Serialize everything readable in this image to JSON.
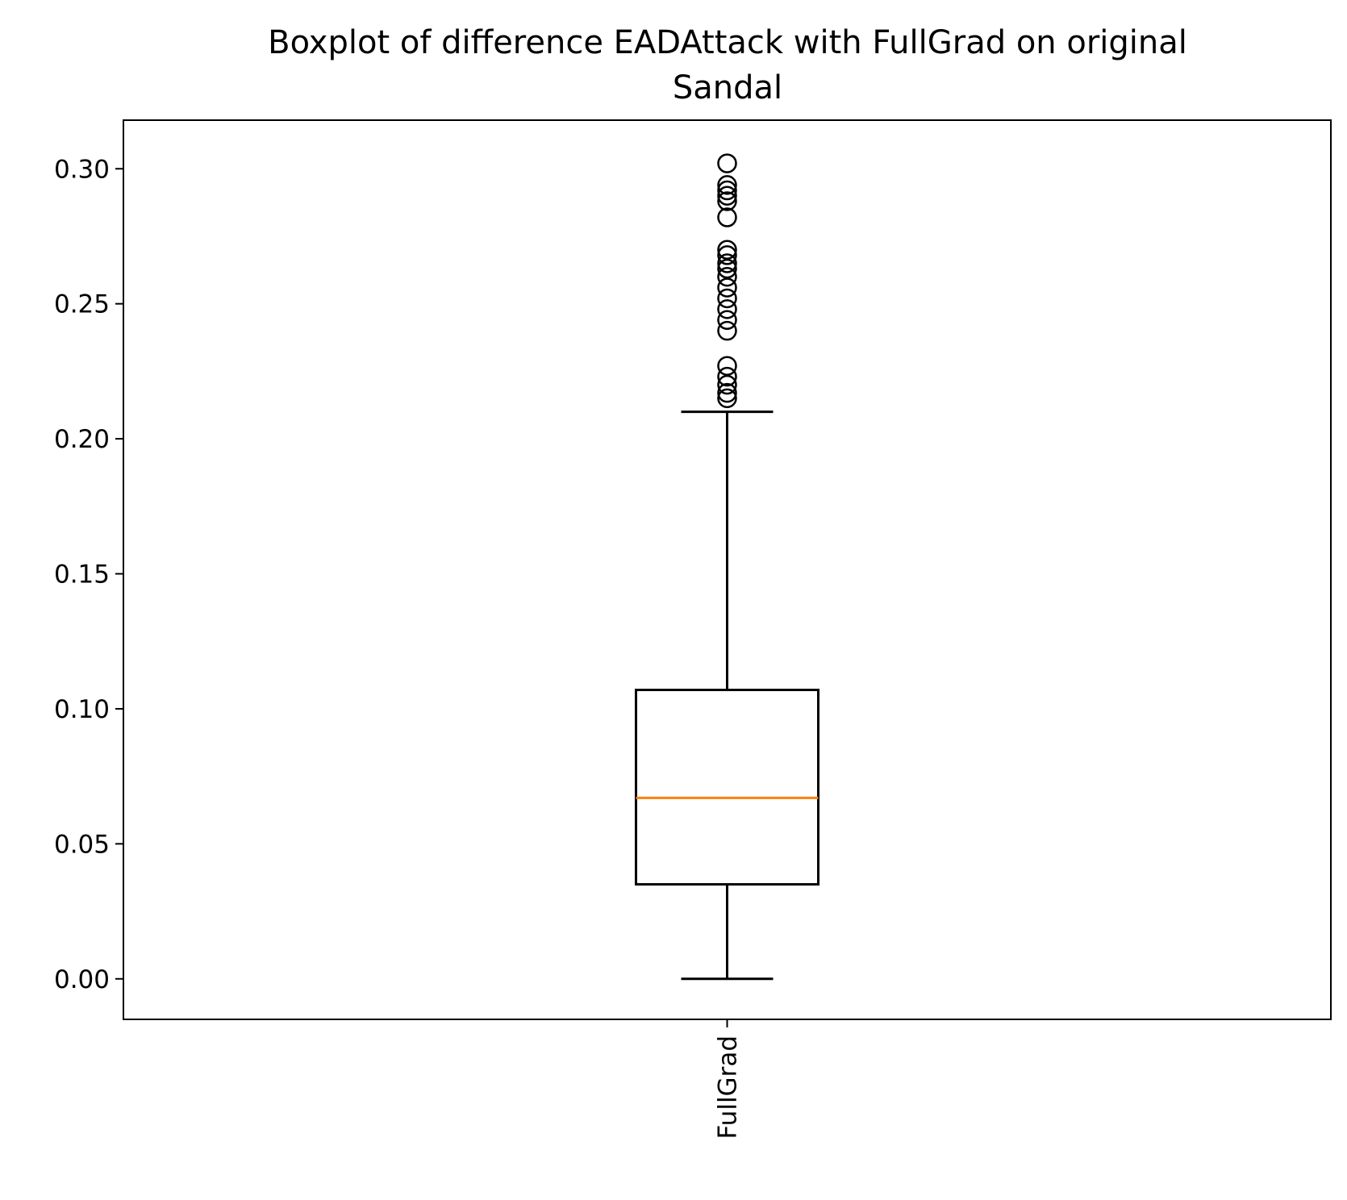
{
  "chart_data": {
    "type": "box",
    "title": "Boxplot of difference EADAttack with FullGrad on original\nSandal",
    "title_lines": [
      "Boxplot of difference EADAttack with FullGrad on original",
      "Sandal"
    ],
    "xlabel": "",
    "ylabel": "",
    "ylim": [
      -0.015,
      0.318
    ],
    "yticks": [
      0.0,
      0.05,
      0.1,
      0.15,
      0.2,
      0.25,
      0.3
    ],
    "ytick_labels": [
      "0.00",
      "0.05",
      "0.10",
      "0.15",
      "0.20",
      "0.25",
      "0.30"
    ],
    "categories": [
      "FullGrad"
    ],
    "boxes": [
      {
        "name": "FullGrad",
        "whisker_low": 0.0,
        "q1": 0.035,
        "median": 0.067,
        "q3": 0.107,
        "whisker_high": 0.21,
        "outliers": [
          0.215,
          0.217,
          0.22,
          0.223,
          0.227,
          0.24,
          0.244,
          0.248,
          0.252,
          0.256,
          0.26,
          0.263,
          0.265,
          0.268,
          0.27,
          0.282,
          0.288,
          0.29,
          0.292,
          0.294,
          0.302
        ]
      }
    ],
    "colors": {
      "box": "#000000",
      "median": "#ff7f0e",
      "outlier": "#000000"
    },
    "grid": false,
    "legend": "none"
  }
}
